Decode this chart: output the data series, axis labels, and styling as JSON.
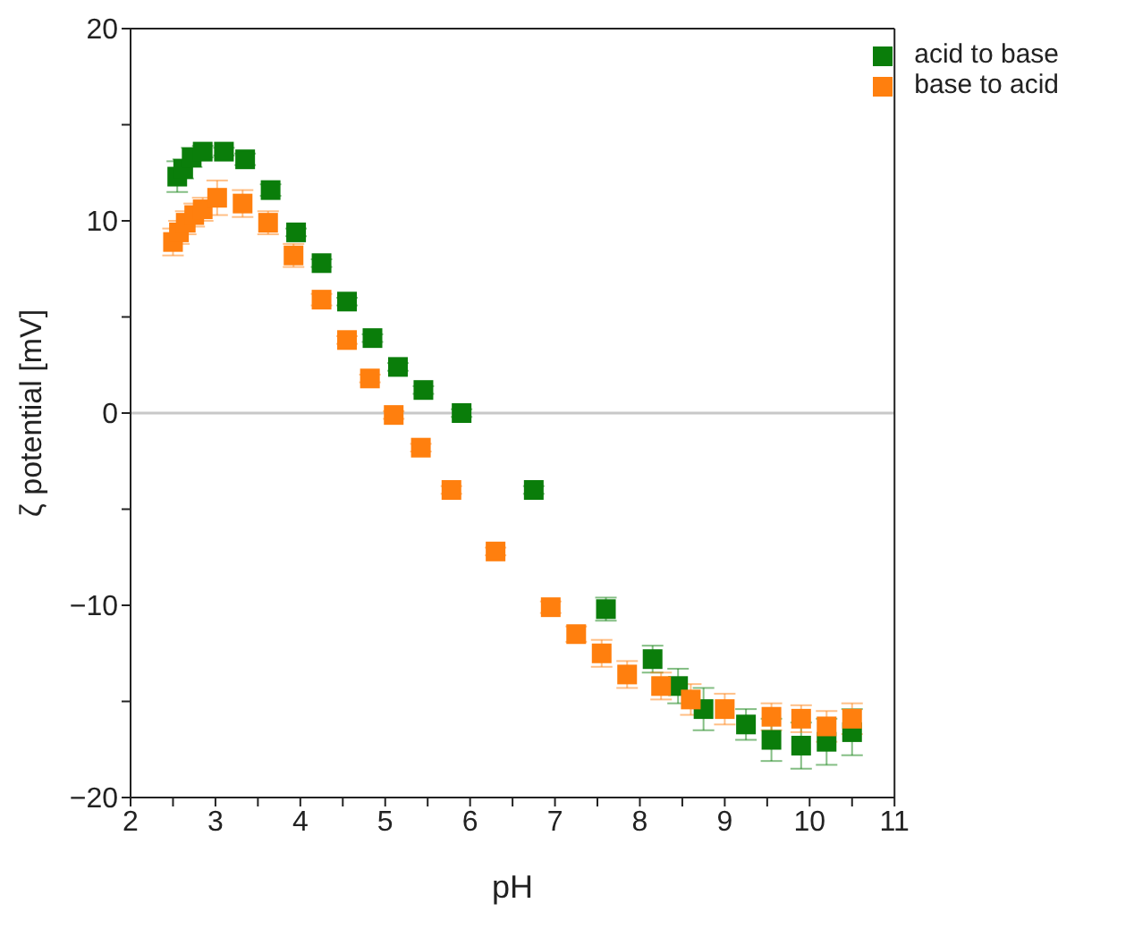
{
  "chart_data": {
    "type": "scatter",
    "xlabel": "pH",
    "ylabel": "ζ potential [mV]",
    "xlim": [
      2,
      11
    ],
    "ylim": [
      -20,
      20
    ],
    "xticks": [
      2,
      {
        "value": 2.5,
        "label": null
      },
      3,
      {
        "value": 3.5,
        "label": null
      },
      4,
      {
        "value": 4.5,
        "label": null
      },
      5,
      {
        "value": 5.5,
        "label": null
      },
      6,
      {
        "value": 6.5,
        "label": null
      },
      7,
      {
        "value": 7.5,
        "label": null
      },
      8,
      {
        "value": 8.5,
        "label": null
      },
      9,
      {
        "value": 9.5,
        "label": null
      },
      10,
      {
        "value": 10.5,
        "label": null
      },
      11
    ],
    "yticks": [
      -20,
      {
        "value": -15,
        "label": null
      },
      -10,
      {
        "value": -5,
        "label": null
      },
      0,
      {
        "value": 5,
        "label": null
      },
      10,
      {
        "value": 15,
        "label": null
      },
      20
    ],
    "marker": "square",
    "grid": false,
    "legend": "top right",
    "ref_lines": [
      {
        "axis": "y",
        "value": 0,
        "color": "#c8c8c8"
      }
    ],
    "series": [
      {
        "name": "acid to base",
        "color": "#0a7d0a",
        "x": [
          2.55,
          2.62,
          2.72,
          2.85,
          3.1,
          3.35,
          3.65,
          3.95,
          4.25,
          4.55,
          4.85,
          5.15,
          5.45,
          5.9,
          6.75,
          7.6,
          8.15,
          8.45,
          8.75,
          9.25,
          9.55,
          9.9,
          10.2,
          10.5
        ],
        "values": [
          12.3,
          12.7,
          13.3,
          13.6,
          13.6,
          13.2,
          11.6,
          9.4,
          7.8,
          5.8,
          3.9,
          2.4,
          1.2,
          0,
          -4,
          -10.2,
          -12.8,
          -14.2,
          -15.4,
          -16.2,
          -17,
          -17.3,
          -17.1,
          -16.6
        ],
        "errors": [
          0.8,
          0.5,
          0.5,
          0.3,
          0.2,
          0.3,
          0.3,
          0.2,
          0.2,
          0.2,
          0.2,
          0.2,
          0.2,
          0.2,
          0.2,
          0.6,
          0.7,
          0.9,
          1.1,
          0.8,
          1.1,
          1.2,
          1.2,
          1.2
        ]
      },
      {
        "name": "base to acid",
        "color": "#ff7f0e",
        "x": [
          2.5,
          2.57,
          2.65,
          2.75,
          2.85,
          3.02,
          3.32,
          3.62,
          3.92,
          4.25,
          4.55,
          4.82,
          5.1,
          5.42,
          5.78,
          6.3,
          6.95,
          7.25,
          7.55,
          7.85,
          8.25,
          8.6,
          9.0,
          9.55,
          9.9,
          10.2,
          10.5
        ],
        "values": [
          8.9,
          9.4,
          9.9,
          10.3,
          10.6,
          11.2,
          10.9,
          9.9,
          8.2,
          5.9,
          3.8,
          1.8,
          -0.1,
          -1.8,
          -4,
          -7.2,
          -10.1,
          -11.5,
          -12.5,
          -13.6,
          -14.2,
          -14.9,
          -15.4,
          -15.8,
          -15.9,
          -16.3,
          -15.9
        ],
        "errors": [
          0.7,
          0.6,
          0.6,
          0.6,
          0.6,
          0.9,
          0.7,
          0.6,
          0.6,
          0.3,
          0.2,
          0.2,
          0.2,
          0.2,
          0.2,
          0.2,
          0.3,
          0.4,
          0.7,
          0.7,
          0.7,
          0.8,
          0.8,
          0.7,
          0.7,
          0.8,
          0.8
        ]
      }
    ]
  }
}
